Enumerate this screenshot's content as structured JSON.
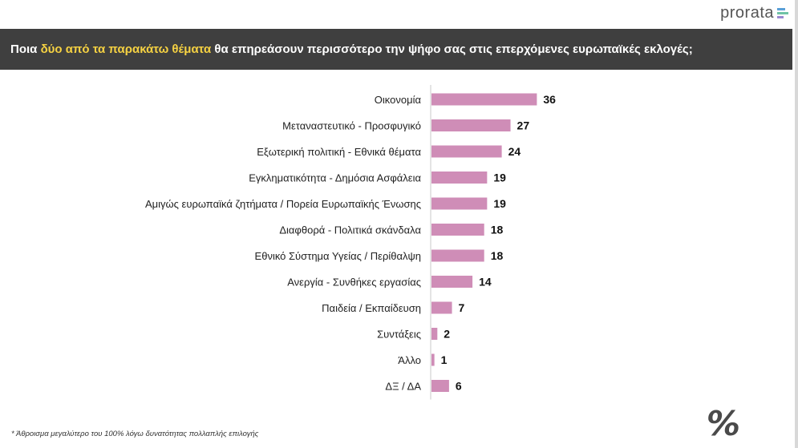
{
  "logo": {
    "text": "prorata",
    "bar_colors": [
      "#5aa0d8",
      "#6fc3a6",
      "#9a8ad0"
    ]
  },
  "header": {
    "title_before": "Ποια ",
    "title_highlight": "δύο από τα παρακάτω θέματα",
    "title_after": " θα επηρεάσουν περισσότερο την ψήφο σας στις επερχόμενες ευρωπαϊκές εκλογές;"
  },
  "colors": {
    "bar": "#cf8db7",
    "header_bg": "#3f3f3f",
    "highlight": "#f5d142"
  },
  "chart_data": {
    "type": "bar",
    "orientation": "horizontal",
    "title": "Ποια δύο από τα παρακάτω θέματα θα επηρεάσουν περισσότερο την ψήφο σας στις επερχόμενες ευρωπαϊκές εκλογές;",
    "categories": [
      "Οικονομία",
      "Μεταναστευτικό - Προσφυγικό",
      "Εξωτερική πολιτική - Εθνικά θέματα",
      "Εγκληματικότητα - Δημόσια Ασφάλεια",
      "Αμιγώς ευρωπαϊκά ζητήματα / Πορεία Ευρωπαϊκής Ένωσης",
      "Διαφθορά - Πολιτικά σκάνδαλα",
      "Εθνικό Σύστημα Υγείας / Περίθαλψη",
      "Ανεργία - Συνθήκες εργασίας",
      "Παιδεία / Εκπαίδευση",
      "Συντάξεις",
      "Άλλο",
      "ΔΞ / ΔΑ"
    ],
    "values": [
      36,
      27,
      24,
      19,
      19,
      18,
      18,
      14,
      7,
      2,
      1,
      6
    ],
    "value_labels": [
      "36",
      "27",
      "24",
      "19",
      "19",
      "18",
      "18",
      "14",
      "7",
      "2",
      "1",
      "6"
    ],
    "xlabel": "",
    "ylabel": "",
    "xlim": [
      0,
      36
    ],
    "grid": false,
    "legend": "none"
  },
  "footnote": "* Άθροισμα μεγαλύτερο του 100% λόγω δυνατότητας πολλαπλής επιλογής",
  "percent_symbol": "%"
}
